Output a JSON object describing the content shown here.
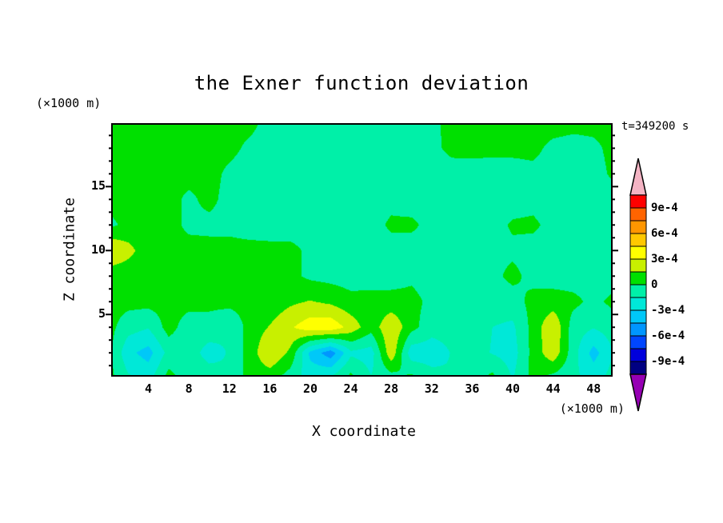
{
  "page": {
    "title": "the Exner function deviation",
    "time_label": "t=349200 s",
    "x_axis_label": "X coordinate",
    "z_axis_label": "Z coordinate",
    "x_unit_label": "(×1000 m)",
    "z_unit_label": "(×1000 m)",
    "background_color": "#ffffff",
    "frame_color": "#000000"
  },
  "chart_data": {
    "type": "heatmap",
    "title": "the Exner function deviation",
    "xlabel": "X coordinate",
    "ylabel": "Z coordinate",
    "axis_units": "(×1000 m)",
    "time_annotation": "t=349200 s",
    "x_range": [
      0.4,
      49.8
    ],
    "z_range": [
      0.2,
      19.9
    ],
    "x_ticks_labeled": [
      4,
      8,
      12,
      16,
      20,
      24,
      28,
      32,
      36,
      40,
      44,
      48
    ],
    "z_ticks_labeled": [
      5,
      10,
      15
    ],
    "x_tick_minor_step": 2,
    "z_tick_minor_step": 1,
    "grid_lines": false,
    "value_scale": "1e-4",
    "levels": [
      -10.5,
      -9,
      -7.5,
      -6,
      -4.5,
      -3,
      -1.5,
      0,
      1.5,
      3,
      4.5,
      6,
      7.5,
      9,
      10.5
    ],
    "colors": [
      "#9600b4",
      "#000082",
      "#0000dc",
      "#0046ff",
      "#0096ff",
      "#00c8f8",
      "#00e8d8",
      "#00f0a8",
      "#00e000",
      "#c8f000",
      "#ffff00",
      "#ffc800",
      "#ff9600",
      "#ff6400",
      "#ff0000",
      "#f4b4c4"
    ],
    "colorbar_labels": [
      "9e-4",
      "6e-4",
      "3e-4",
      "0",
      "-3e-4",
      "-6e-4",
      "-9e-4"
    ],
    "colorbar_position": "right",
    "grid": {
      "comment_units": "values in 1e-4, rows bottom(z=0) to top(z=20)",
      "x0": 0,
      "dx": 2,
      "nx": 26,
      "z0": 0,
      "dz": 2,
      "nz": 11,
      "values": [
        [
          0.6,
          -1.2,
          -2.0,
          0.6,
          -0.8,
          -0.8,
          -1.4,
          0.6,
          0.5,
          -0.8,
          -2.0,
          -1.2,
          0.5,
          -1.4,
          -0.8,
          0.5,
          -0.8,
          -1.4,
          -0.8,
          0.5,
          -1.6,
          0.5,
          -0.6,
          -1.2,
          -2.0,
          -0.9
        ],
        [
          0.6,
          -2.6,
          -3.6,
          -1.0,
          -0.9,
          -2.0,
          -1.4,
          0.6,
          3.0,
          1.2,
          -3.4,
          -5.4,
          -1.8,
          -2.2,
          2.6,
          -2.4,
          -2.4,
          -1.4,
          -0.9,
          -1.6,
          -2.2,
          0.5,
          2.6,
          -0.9,
          -3.6,
          -1.4
        ],
        [
          0.6,
          -0.9,
          -1.4,
          0.6,
          -0.8,
          -0.8,
          -1.4,
          0.6,
          1.6,
          2.8,
          3.9,
          4.1,
          2.4,
          0.6,
          2.8,
          0.5,
          -0.9,
          -0.9,
          -0.8,
          -1.5,
          -1.8,
          0.5,
          2.9,
          -0.8,
          -1.4,
          -0.8
        ],
        [
          0.6,
          0.5,
          0.5,
          0.6,
          0.5,
          0.5,
          0.5,
          0.6,
          0.5,
          1.2,
          1.6,
          1.2,
          0.5,
          0.5,
          0.6,
          0.5,
          -0.4,
          -0.5,
          -0.4,
          -0.8,
          -0.7,
          0.5,
          0.7,
          0.4,
          -0.4,
          0.4
        ],
        [
          0.5,
          0.5,
          0.6,
          0.5,
          0.5,
          0.5,
          0.5,
          0.5,
          0.5,
          0.4,
          -0.3,
          -0.5,
          -0.7,
          -0.6,
          -0.7,
          -0.3,
          -0.7,
          -0.7,
          -0.7,
          -0.4,
          0.4,
          -0.5,
          -0.7,
          -0.7,
          -0.7,
          -0.7
        ],
        [
          3.2,
          2.0,
          0.6,
          0.5,
          0.5,
          0.5,
          0.5,
          0.5,
          0.4,
          0.4,
          -0.3,
          -0.4,
          -0.6,
          -0.7,
          -0.7,
          -0.7,
          -0.7,
          -0.7,
          -0.6,
          -0.4,
          -0.3,
          -0.6,
          -0.7,
          -0.7,
          -0.7,
          -0.7
        ],
        [
          -0.4,
          0.4,
          0.5,
          0.5,
          -0.3,
          -0.4,
          -0.4,
          -0.7,
          -0.7,
          -0.7,
          -0.7,
          -0.7,
          -0.7,
          -0.7,
          0.3,
          0.3,
          -0.5,
          -0.7,
          -0.7,
          -0.6,
          0.2,
          0.3,
          -0.5,
          -0.7,
          -0.7,
          -0.6
        ],
        [
          0.5,
          0.5,
          0.5,
          0.5,
          -0.3,
          0.4,
          -0.5,
          -0.7,
          -0.7,
          -0.7,
          -0.7,
          -0.7,
          -0.7,
          -0.7,
          -0.5,
          -0.7,
          -0.7,
          -0.7,
          -0.7,
          -0.7,
          -0.7,
          -0.5,
          -0.7,
          -0.7,
          -0.7,
          -0.7
        ],
        [
          0.5,
          0.5,
          0.5,
          0.5,
          0.5,
          0.5,
          -0.3,
          -0.7,
          -0.7,
          -0.7,
          -0.7,
          -0.7,
          -0.7,
          -0.7,
          -0.7,
          -0.7,
          -0.6,
          -0.5,
          -0.6,
          -0.7,
          -0.5,
          -0.3,
          -0.5,
          -0.7,
          -0.6,
          0.3
        ],
        [
          0.5,
          0.5,
          0.5,
          0.5,
          0.5,
          0.5,
          0.4,
          -0.3,
          -0.6,
          -0.7,
          -0.7,
          -0.7,
          -0.7,
          -0.7,
          -0.6,
          -0.5,
          -0.3,
          0.3,
          0.4,
          0.4,
          0.3,
          0.3,
          -0.3,
          -0.5,
          -0.3,
          0.4
        ],
        [
          0.5,
          0.5,
          0.5,
          0.5,
          0.5,
          0.5,
          0.5,
          0.4,
          -0.5,
          -0.7,
          -0.7,
          -0.7,
          -0.7,
          -0.6,
          -0.5,
          -0.4,
          -0.3,
          0.4,
          0.5,
          0.5,
          0.5,
          0.5,
          0.5,
          0.4,
          0.4,
          0.5
        ]
      ]
    }
  }
}
